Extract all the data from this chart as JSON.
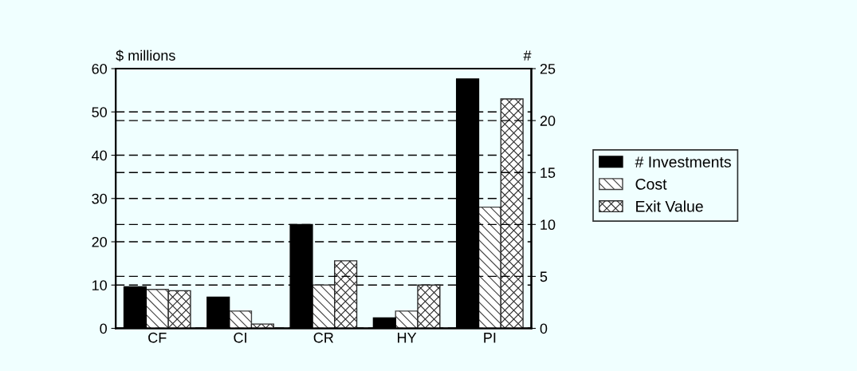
{
  "chart_data": {
    "type": "bar",
    "ylabel": "$ millions",
    "y2label": "#",
    "categories": [
      "CF",
      "CI",
      "CR",
      "HY",
      "PI"
    ],
    "series": [
      {
        "name": "# Investments",
        "color": "#000000",
        "axis": "y2",
        "values": [
          4,
          3,
          10,
          1,
          24
        ]
      },
      {
        "name": "Cost",
        "color": "#404040",
        "values": [
          9,
          4,
          10,
          4,
          28
        ]
      },
      {
        "name": "Exit Value",
        "color": "#2a2a2a",
        "values": [
          8.7,
          1,
          15.6,
          10,
          53
        ]
      }
    ],
    "ylim": [
      0,
      60
    ],
    "yticks": [
      0,
      10,
      20,
      30,
      40,
      50,
      60
    ],
    "y2lim": [
      0,
      25
    ],
    "y2ticks": [
      0,
      5,
      10,
      15,
      20,
      25
    ],
    "grid": true,
    "legend": "right"
  }
}
